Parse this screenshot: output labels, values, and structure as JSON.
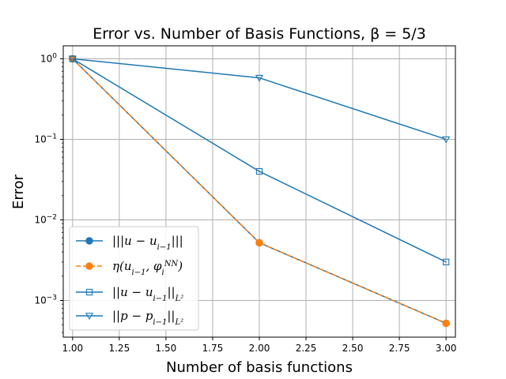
{
  "chart_data": {
    "type": "line",
    "title": "Error vs. Number of Basis Functions, β = 5/3",
    "xlabel": "Number of basis functions",
    "ylabel": "Error",
    "xlim": [
      0.95,
      3.05
    ],
    "ylim": [
      0.00035,
      1.45
    ],
    "yscale": "log",
    "grid": true,
    "legend_position": "lower-left",
    "x_ticks": [
      "1.00",
      "1.25",
      "1.50",
      "1.75",
      "2.00",
      "2.25",
      "2.50",
      "2.75",
      "3.00"
    ],
    "x_tick_values": [
      1.0,
      1.25,
      1.5,
      1.75,
      2.0,
      2.25,
      2.5,
      2.75,
      3.0
    ],
    "y_ticks": [
      {
        "value": 1,
        "base": "10",
        "exp": "0"
      },
      {
        "value": 0.1,
        "base": "10",
        "exp": "−1"
      },
      {
        "value": 0.01,
        "base": "10",
        "exp": "−2"
      },
      {
        "value": 0.001,
        "base": "10",
        "exp": "−3"
      }
    ],
    "x": [
      1,
      2,
      3
    ],
    "series": [
      {
        "name": "|||u − u_{i−1}|||",
        "legend_html": "|||<tspan>u</tspan> − <tspan>u</tspan><tspan baseline-shift=\"sub\" font-size=\"10\">i−1</tspan>|||",
        "values": [
          1.0,
          0.0052,
          0.00052
        ],
        "color": "#1f77b4",
        "marker": "circle",
        "dash": "solid"
      },
      {
        "name": "η(u_{i−1}, φ_i^{NN})",
        "legend_html": "η(u<tspan baseline-shift=\"sub\" font-size=\"10\">i−1</tspan>, φ<tspan baseline-shift=\"sub\" font-size=\"10\">i</tspan><tspan baseline-shift=\"super\" font-size=\"10\">NN</tspan>)",
        "values": [
          1.0,
          0.0052,
          0.00052
        ],
        "color": "#ff7f0e",
        "marker": "circle",
        "dash": "dashed"
      },
      {
        "name": "||u − u_{i−1}||_{L²}",
        "legend_html": "||u − u<tspan baseline-shift=\"sub\" font-size=\"10\">i−1</tspan>||<tspan baseline-shift=\"sub\" font-size=\"10\">L²</tspan>",
        "values": [
          1.0,
          0.04,
          0.003
        ],
        "color": "#1f77b4",
        "marker": "square",
        "dash": "solid"
      },
      {
        "name": "||p − p_{i−1}||_{L²}",
        "legend_html": "||p − p<tspan baseline-shift=\"sub\" font-size=\"10\">i−1</tspan>||<tspan baseline-shift=\"sub\" font-size=\"10\">L²</tspan>",
        "values": [
          1.0,
          0.58,
          0.1
        ],
        "color": "#1f77b4",
        "marker": "triangle-down",
        "dash": "solid"
      }
    ]
  }
}
